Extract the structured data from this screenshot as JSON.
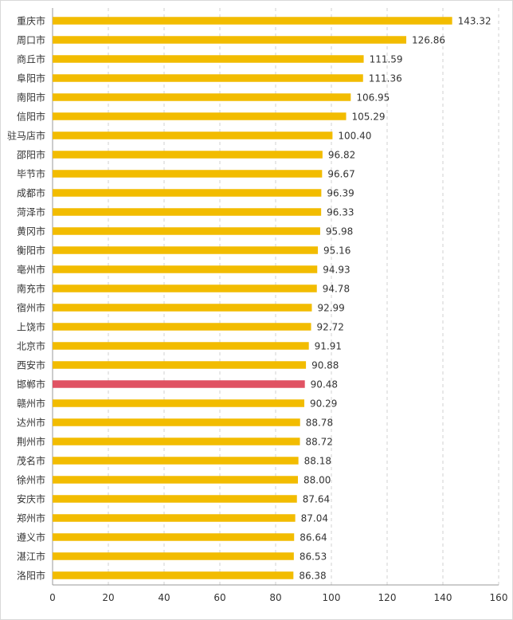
{
  "chart_data": {
    "type": "bar",
    "orientation": "horizontal",
    "categories": [
      "重庆市",
      "周口市",
      "商丘市",
      "阜阳市",
      "南阳市",
      "信阳市",
      "驻马店市",
      "邵阳市",
      "毕节市",
      "成都市",
      "菏泽市",
      "黄冈市",
      "衡阳市",
      "亳州市",
      "南充市",
      "宿州市",
      "上饶市",
      "北京市",
      "西安市",
      "邯郸市",
      "赣州市",
      "达州市",
      "荆州市",
      "茂名市",
      "徐州市",
      "安庆市",
      "郑州市",
      "遵义市",
      "湛江市",
      "洛阳市"
    ],
    "values": [
      143.32,
      126.86,
      111.59,
      111.36,
      106.95,
      105.29,
      100.4,
      96.82,
      96.67,
      96.39,
      96.33,
      95.98,
      95.16,
      94.93,
      94.78,
      92.99,
      92.72,
      91.91,
      90.88,
      90.48,
      90.29,
      88.78,
      88.72,
      88.18,
      88.0,
      87.64,
      87.04,
      86.64,
      86.53,
      86.38
    ],
    "value_labels": [
      "143.32",
      "126.86",
      "111.59",
      "111.36",
      "106.95",
      "105.29",
      "100.40",
      "96.82",
      "96.67",
      "96.39",
      "96.33",
      "95.98",
      "95.16",
      "94.93",
      "94.78",
      "92.99",
      "92.72",
      "91.91",
      "90.88",
      "90.48",
      "90.29",
      "88.78",
      "88.72",
      "88.18",
      "88.00",
      "87.64",
      "87.04",
      "86.64",
      "86.53",
      "86.38"
    ],
    "highlight_category": "邯郸市",
    "xlim": [
      0,
      160
    ],
    "x_ticks": [
      "0",
      "20",
      "40",
      "60",
      "80",
      "100",
      "120",
      "140",
      "160"
    ],
    "title": "",
    "xlabel": "",
    "ylabel": "",
    "grid": "vertical-dashed",
    "legend": "none",
    "colors": {
      "bar": "#F2BC00",
      "highlight": "#E05263"
    }
  }
}
